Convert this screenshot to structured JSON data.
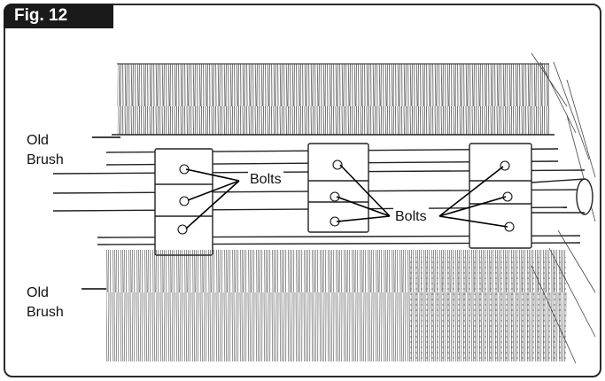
{
  "figure": {
    "label": "Fig. 12",
    "callouts": {
      "old_brush_top": [
        "Old",
        "Brush"
      ],
      "old_brush_bottom": [
        "Old",
        "Brush"
      ],
      "bolts_left": "Bolts",
      "bolts_right": "Bolts"
    }
  },
  "colors": {
    "ink": "#1a1a1a",
    "frame": "#2b2b2b",
    "label_bg": "#1a1a1a",
    "label_text": "#ffffff"
  }
}
